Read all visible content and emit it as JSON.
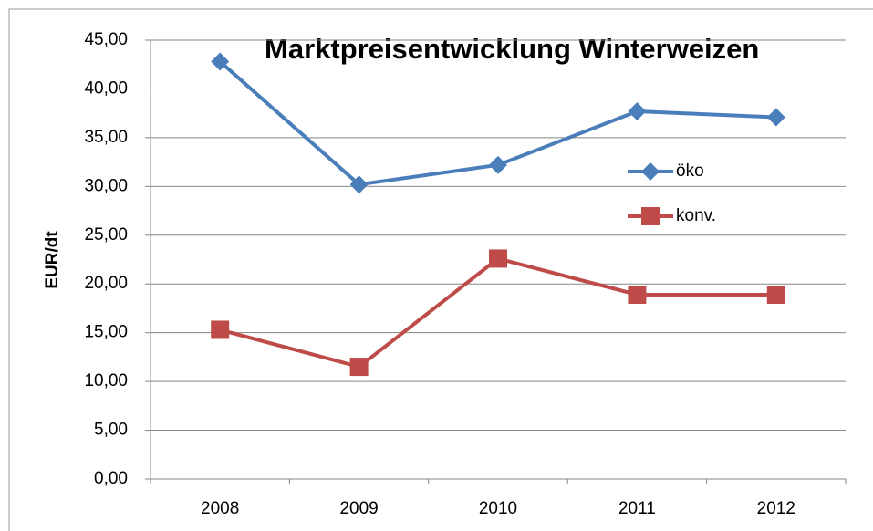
{
  "chart_data": {
    "type": "line",
    "title": "Marktpreisentwicklung Winterweizen",
    "y_label": "EUR/dt",
    "categories": [
      "2008",
      "2009",
      "2010",
      "2011",
      "2012"
    ],
    "series": [
      {
        "name": "öko",
        "color": "#4a7ebb",
        "marker": "diamond",
        "values": [
          42.8,
          30.2,
          32.2,
          37.7,
          37.1
        ]
      },
      {
        "name": "konv.",
        "color": "#be4b48",
        "marker": "square",
        "values": [
          15.3,
          11.5,
          22.6,
          18.9,
          18.9
        ]
      }
    ],
    "ylim": [
      0,
      45
    ],
    "yticks": [
      {
        "value": 0,
        "label": "0,00"
      },
      {
        "value": 5,
        "label": "5,00"
      },
      {
        "value": 10,
        "label": "10,00"
      },
      {
        "value": 15,
        "label": "15,00"
      },
      {
        "value": 20,
        "label": "20,00"
      },
      {
        "value": 25,
        "label": "25,00"
      },
      {
        "value": 30,
        "label": "30,00"
      },
      {
        "value": 35,
        "label": "35,00"
      },
      {
        "value": 40,
        "label": "40,00"
      },
      {
        "value": 45,
        "label": "45,00"
      }
    ],
    "grid": true,
    "legend": "right"
  }
}
